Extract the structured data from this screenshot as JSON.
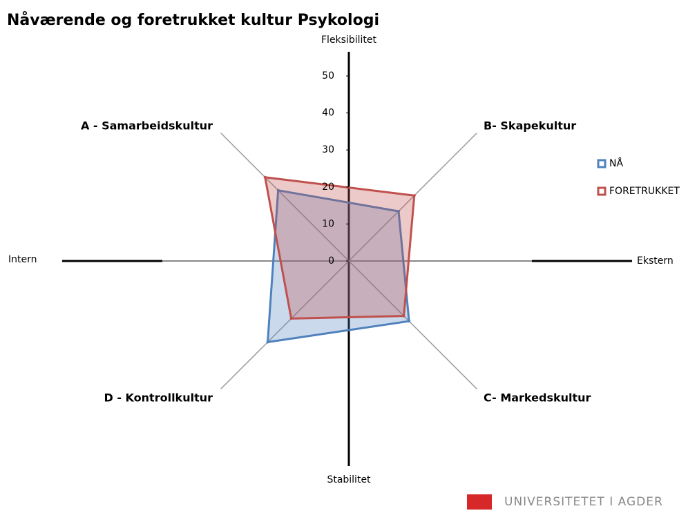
{
  "chart_data": {
    "type": "radar",
    "title": "Nåværende og foretrukket kultur Psykologi",
    "categories": [
      "A - Samarbeidskultur",
      "B- Skapekultur",
      "C- Markedskultur",
      "D - Kontrollkultur"
    ],
    "series": [
      {
        "name": "NÅ",
        "color": "#4f81bd",
        "values": [
          27,
          19,
          23,
          31
        ]
      },
      {
        "name": "FORETRUKKET",
        "color": "#c0504d",
        "values": [
          32,
          25,
          21,
          22
        ]
      }
    ],
    "ylim": [
      0,
      50
    ],
    "yticks": [
      0,
      10,
      20,
      30,
      40,
      50
    ],
    "axis_labels": {
      "top": "Fleksibilitet",
      "right": "Ekstern",
      "bottom": "Stabilitet",
      "left": "Intern"
    },
    "legend": "right"
  },
  "footer": "UNIVERSITETET I AGDER"
}
